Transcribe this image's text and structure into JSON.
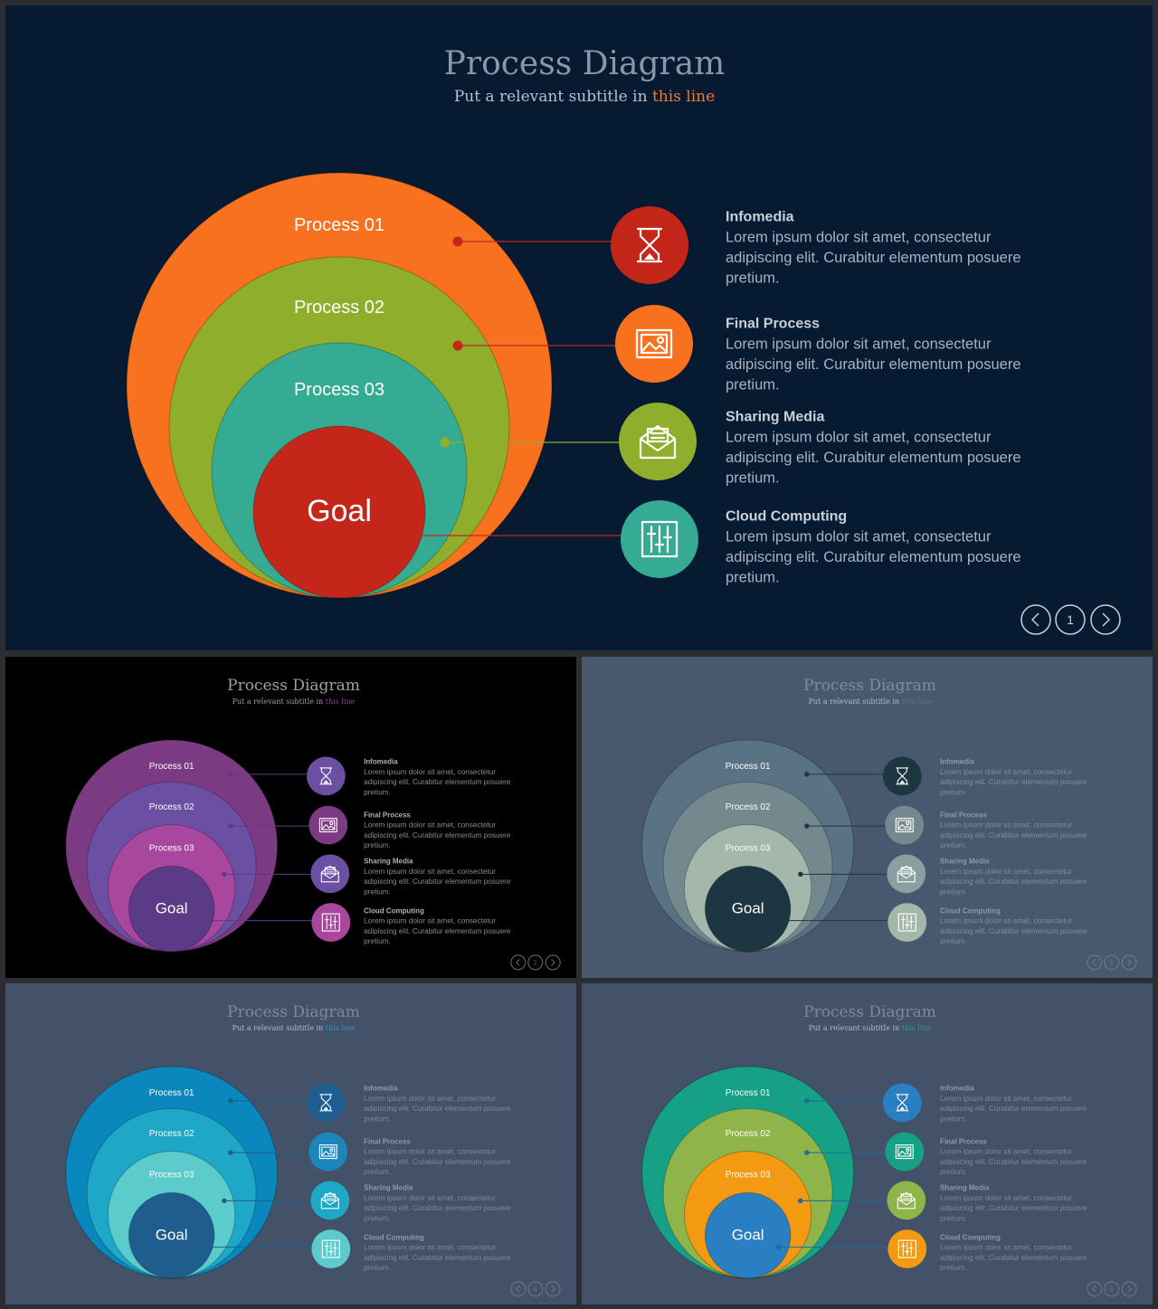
{
  "slides": [
    {
      "title": "Process Diagram",
      "subtitle_prefix": "Put a relevant subtitle in ",
      "subtitle_highlight": "this line",
      "page": "1",
      "circle_labels": [
        "Process 01",
        "Process 02",
        "Process 03",
        "Goal"
      ],
      "items": [
        {
          "title": "Infomedia",
          "lines": [
            "Lorem ipsum dolor sit amet, consectetur",
            "adipiscing elit. Curabitur elementum posuere",
            "pretium."
          ]
        },
        {
          "title": "Final Process",
          "lines": [
            "Lorem ipsum dolor sit amet, consectetur",
            "adipiscing elit. Curabitur elementum posuere",
            "pretium."
          ]
        },
        {
          "title": "Sharing Media",
          "lines": [
            "Lorem ipsum dolor sit amet, consectetur",
            "adipiscing elit. Curabitur elementum posuere",
            "pretium."
          ]
        },
        {
          "title": "Cloud Computing",
          "lines": [
            "Lorem ipsum dolor sit amet, consectetur",
            "adipiscing elit. Curabitur elementum posuere",
            "pretium."
          ]
        }
      ],
      "icons": [
        "hourglass-icon",
        "image-icon",
        "mail-icon",
        "sliders-icon"
      ],
      "colors": {
        "background": "#061a31",
        "title": "#8c96a6",
        "subtitle": "#b8c0cc",
        "highlight": "#f07a2a",
        "circles": [
          "#f7711f",
          "#8fae2b",
          "#35ab93",
          "#c4271a"
        ],
        "icon_circles": [
          "#c4271a",
          "#f7711f",
          "#8fae2b",
          "#35ab93"
        ],
        "dots": [
          "#c4271a",
          "#c4271a",
          "#8fae2b",
          "#c4271a"
        ],
        "text": "#a8b2c0",
        "item_title": "#c8d0da",
        "circle_text": "#ffffff",
        "nav": "#c8d0da"
      }
    },
    {
      "title": "Process Diagram",
      "subtitle_prefix": "Put a relevant subtitle in ",
      "subtitle_highlight": "this line",
      "page": "2",
      "circle_labels": [
        "Process 01",
        "Process 02",
        "Process 03",
        "Goal"
      ],
      "items": [
        {
          "title": "Infomedia",
          "lines": [
            "Lorem ipsum dolor sit amet, consectetur",
            "adipiscing elit. Curabitur elementum posuere",
            "pretium."
          ]
        },
        {
          "title": "Final Process",
          "lines": [
            "Lorem ipsum dolor sit amet, consectetur",
            "adipiscing elit. Curabitur elementum posuere",
            "pretium."
          ]
        },
        {
          "title": "Sharing Media",
          "lines": [
            "Lorem ipsum dolor sit amet, consectetur",
            "adipiscing elit. Curabitur elementum posuere",
            "pretium."
          ]
        },
        {
          "title": "Cloud Computing",
          "lines": [
            "Lorem ipsum dolor sit amet, consectetur",
            "adipiscing elit. Curabitur elementum posuere",
            "pretium."
          ]
        }
      ],
      "icons": [
        "hourglass-icon",
        "image-icon",
        "mail-icon",
        "sliders-icon"
      ],
      "colors": {
        "background": "#000000",
        "title": "#a0a0a0",
        "subtitle": "#a0a0a0",
        "highlight": "#9b3a9a",
        "circles": [
          "#7c3a83",
          "#6a4fa3",
          "#a9479f",
          "#5b3a86"
        ],
        "icon_circles": [
          "#6a4fa3",
          "#7c3a83",
          "#6a4fa3",
          "#a9479f"
        ],
        "dots": [
          "#5b3a86",
          "#5b3a86",
          "#5b3a86",
          "#5b3a86"
        ],
        "text": "#8a8a8a",
        "item_title": "#b0b0b0",
        "circle_text": "#ffffff",
        "nav": "#6a6a6a"
      }
    },
    {
      "title": "Process Diagram",
      "subtitle_prefix": "Put a relevant subtitle in ",
      "subtitle_highlight": "this line",
      "page": "3",
      "circle_labels": [
        "Process 01",
        "Process 02",
        "Process 03",
        "Goal"
      ],
      "items": [
        {
          "title": "Infomedia",
          "lines": [
            "Lorem ipsum dolor sit amet, consectetur",
            "adipiscing elit. Curabitur elementum posuere",
            "pretium."
          ]
        },
        {
          "title": "Final Process",
          "lines": [
            "Lorem ipsum dolor sit amet, consectetur",
            "adipiscing elit. Curabitur elementum posuere",
            "pretium."
          ]
        },
        {
          "title": "Sharing Media",
          "lines": [
            "Lorem ipsum dolor sit amet, consectetur",
            "adipiscing elit. Curabitur elementum posuere",
            "pretium."
          ]
        },
        {
          "title": "Cloud Computing",
          "lines": [
            "Lorem ipsum dolor sit amet, consectetur",
            "adipiscing elit. Curabitur elementum posuere",
            "pretium."
          ]
        }
      ],
      "icons": [
        "hourglass-icon",
        "image-icon",
        "mail-icon",
        "sliders-icon"
      ],
      "colors": {
        "background": "#48586f",
        "title": "#7f8ba0",
        "subtitle": "#b0bac8",
        "highlight": "#5e6f86",
        "circles": [
          "#5a7384",
          "#74898e",
          "#a3b8ab",
          "#1d3742"
        ],
        "icon_circles": [
          "#1d3742",
          "#74898e",
          "#88a0a0",
          "#a3b8ab"
        ],
        "dots": [
          "#1d3742",
          "#1d3742",
          "#1d3742",
          "#1d3742"
        ],
        "text": "#7f8ba0",
        "item_title": "#8d98ab",
        "circle_text": "#ffffff",
        "nav": "#6d7a90"
      }
    },
    {
      "title": "Process Diagram",
      "subtitle_prefix": "Put a relevant subtitle in ",
      "subtitle_highlight": "this line",
      "page": "4",
      "circle_labels": [
        "Process 01",
        "Process 02",
        "Process 03",
        "Goal"
      ],
      "items": [
        {
          "title": "Infomedia",
          "lines": [
            "Lorem ipsum dolor sit amet, consectetur",
            "adipiscing elit. Curabitur elementum posuere",
            "pretium."
          ]
        },
        {
          "title": "Final Process",
          "lines": [
            "Lorem ipsum dolor sit amet, consectetur",
            "adipiscing elit. Curabitur elementum posuere",
            "pretium."
          ]
        },
        {
          "title": "Sharing Media",
          "lines": [
            "Lorem ipsum dolor sit amet, consectetur",
            "adipiscing elit. Curabitur elementum posuere",
            "pretium."
          ]
        },
        {
          "title": "Cloud Computing",
          "lines": [
            "Lorem ipsum dolor sit amet, consectetur",
            "adipiscing elit. Curabitur elementum posuere",
            "pretium."
          ]
        }
      ],
      "icons": [
        "hourglass-icon",
        "image-icon",
        "mail-icon",
        "sliders-icon"
      ],
      "colors": {
        "background": "#435169",
        "title": "#7d889b",
        "subtitle": "#b0bac8",
        "highlight": "#2e96c8",
        "circles": [
          "#0a87bd",
          "#1ea7c7",
          "#5ccbcb",
          "#1f5d8f"
        ],
        "icon_circles": [
          "#1f5d8f",
          "#1a86bb",
          "#1ea7c7",
          "#5ccbcb"
        ],
        "dots": [
          "#1f5d8f",
          "#1f5d8f",
          "#1f5d8f",
          "#1f5d8f"
        ],
        "text": "#7d889b",
        "item_title": "#8d98ab",
        "circle_text": "#ffffff",
        "nav": "#6a7690"
      }
    },
    {
      "title": "Process Diagram",
      "subtitle_prefix": "Put a relevant subtitle in ",
      "subtitle_highlight": "this line",
      "page": "5",
      "circle_labels": [
        "Process 01",
        "Process 02",
        "Process 03",
        "Goal"
      ],
      "items": [
        {
          "title": "Infomedia",
          "lines": [
            "Lorem ipsum dolor sit amet, consectetur",
            "adipiscing elit. Curabitur elementum posuere",
            "pretium."
          ]
        },
        {
          "title": "Final Process",
          "lines": [
            "Lorem ipsum dolor sit amet, consectetur",
            "adipiscing elit. Curabitur elementum posuere",
            "pretium."
          ]
        },
        {
          "title": "Sharing Media",
          "lines": [
            "Lorem ipsum dolor sit amet, consectetur",
            "adipiscing elit. Curabitur elementum posuere",
            "pretium."
          ]
        },
        {
          "title": "Cloud Computing",
          "lines": [
            "Lorem ipsum dolor sit amet, consectetur",
            "adipiscing elit. Curabitur elementum posuere",
            "pretium."
          ]
        }
      ],
      "icons": [
        "hourglass-icon",
        "image-icon",
        "mail-icon",
        "sliders-icon"
      ],
      "colors": {
        "background": "#435169",
        "title": "#7d889b",
        "subtitle": "#b0bac8",
        "highlight": "#29a08a",
        "circles": [
          "#16a086",
          "#8fb54a",
          "#f39a12",
          "#2a7fc2"
        ],
        "icon_circles": [
          "#2a7fc2",
          "#16a086",
          "#8fb54a",
          "#f39a12"
        ],
        "dots": [
          "#1f6a99",
          "#1f6a99",
          "#1f6a99",
          "#1f6a99"
        ],
        "text": "#7d889b",
        "item_title": "#8d98ab",
        "circle_text": "#ffffff",
        "nav": "#6a7690"
      }
    }
  ]
}
